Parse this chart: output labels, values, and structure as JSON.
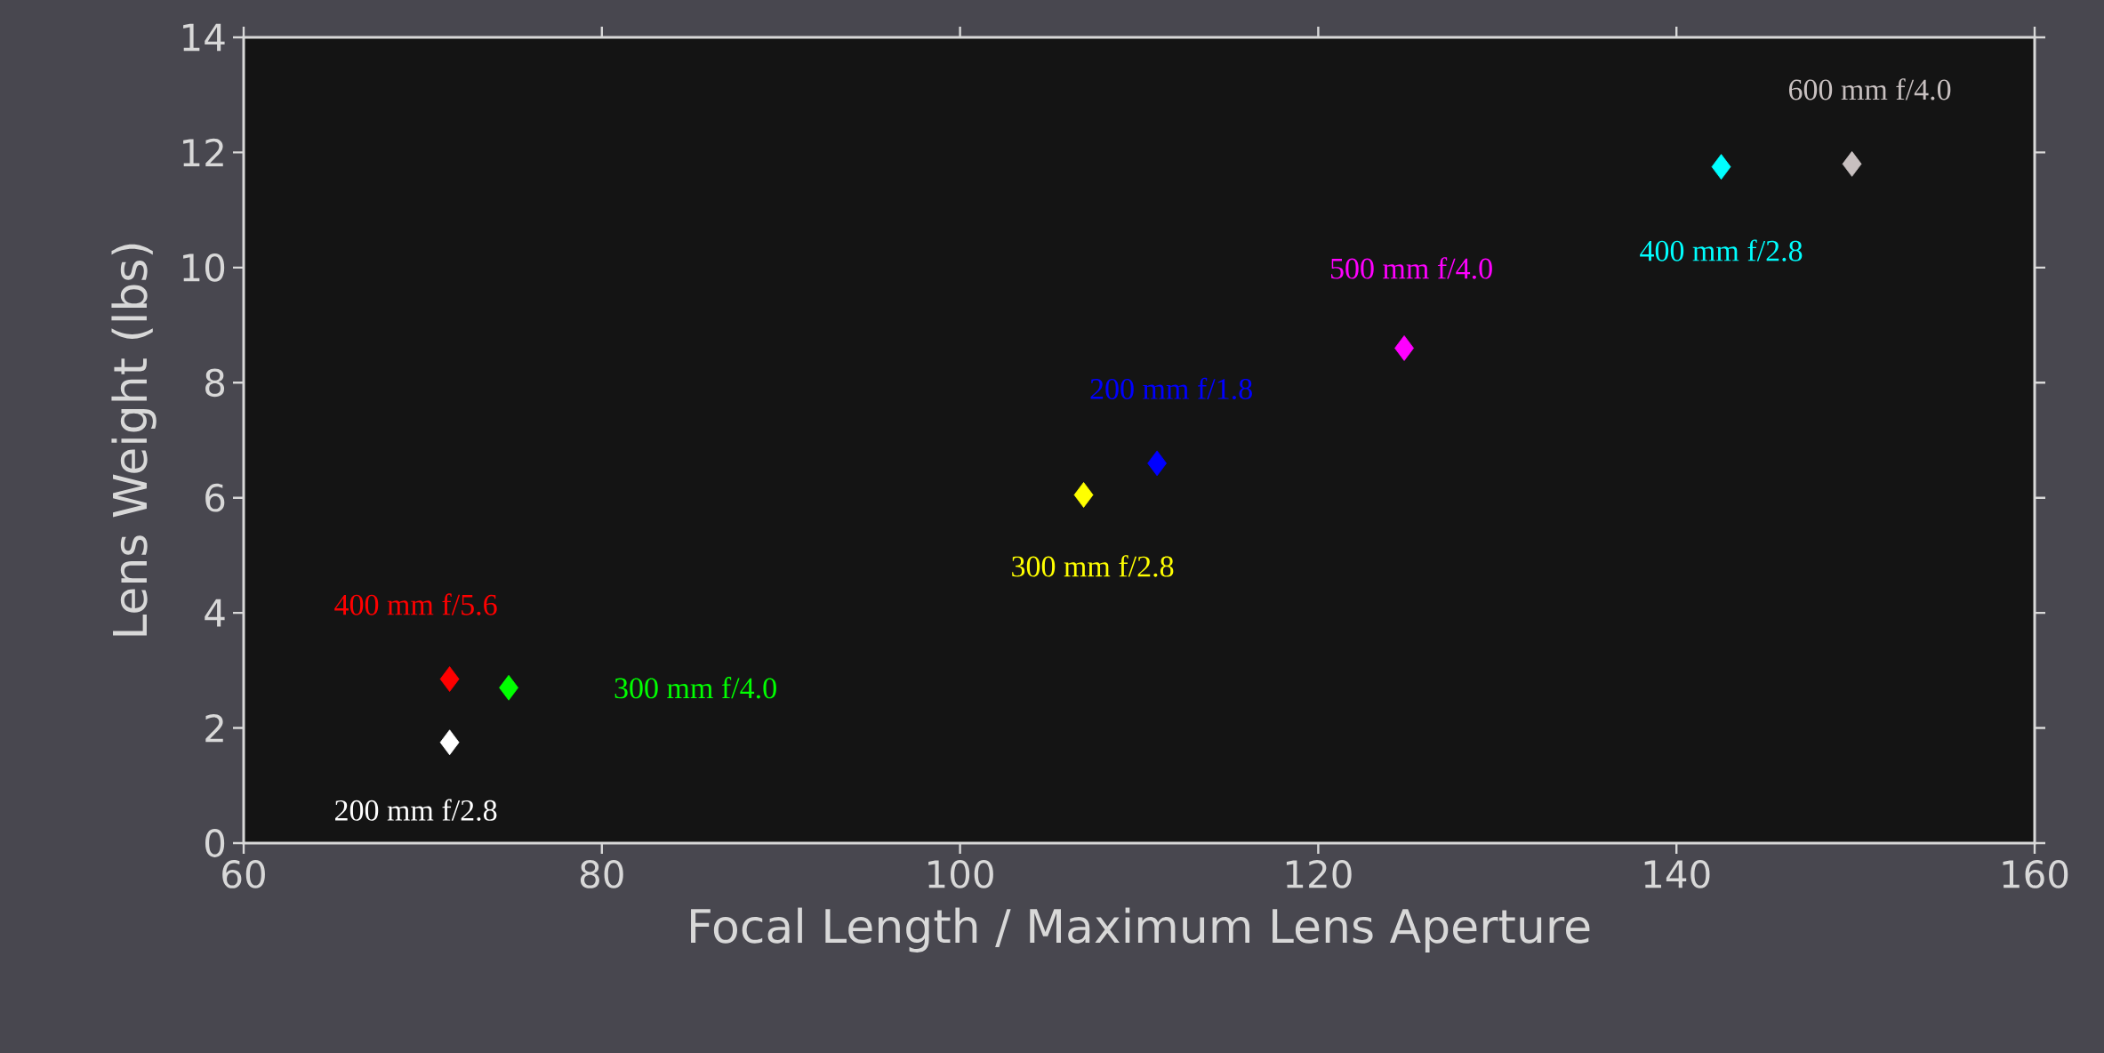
{
  "chart_data": {
    "type": "scatter",
    "xlabel": "Focal Length / Maximum Lens Aperture",
    "ylabel": "Lens Weight (lbs)",
    "xlim": [
      60,
      160
    ],
    "ylim": [
      0,
      14
    ],
    "xticks": [
      60,
      80,
      100,
      120,
      140,
      160
    ],
    "yticks": [
      0,
      2,
      4,
      6,
      8,
      10,
      12,
      14
    ],
    "marker": "diamond",
    "grid": false,
    "legend": false,
    "series": [
      {
        "name": "400 mm f/5.6",
        "color": "#ff0000",
        "x": [
          71.5
        ],
        "values": [
          2.85
        ]
      },
      {
        "name": "200 mm f/2.8",
        "color": "#ffffff",
        "x": [
          71.5
        ],
        "values": [
          1.75
        ]
      },
      {
        "name": "300 mm f/4.0",
        "color": "#00ff00",
        "x": [
          74.8
        ],
        "values": [
          2.7
        ]
      },
      {
        "name": "300 mm f/2.8",
        "color": "#ffff00",
        "x": [
          106.9
        ],
        "values": [
          6.05
        ]
      },
      {
        "name": "200 mm f/1.8",
        "color": "#0000ff",
        "x": [
          111.0
        ],
        "values": [
          6.6
        ]
      },
      {
        "name": "500 mm f/4.0",
        "color": "#ff00ff",
        "x": [
          124.8
        ],
        "values": [
          8.6
        ]
      },
      {
        "name": "400 mm f/2.8",
        "color": "#00ffff",
        "x": [
          142.5
        ],
        "values": [
          11.75
        ]
      },
      {
        "name": "600 mm f/4.0",
        "color": "#c8c0c0",
        "x": [
          149.8
        ],
        "values": [
          11.8
        ]
      }
    ]
  }
}
